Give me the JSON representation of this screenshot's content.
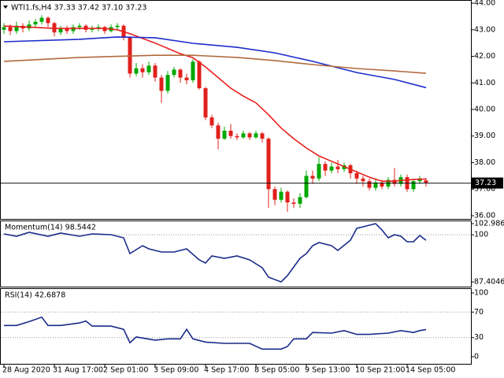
{
  "chart_data": [
    {
      "type": "candlestick",
      "title": "WTI1.fs,H4  37.33 37.42 37.10 37.23",
      "open": [
        43.0,
        43.1,
        42.95,
        43.15,
        43.05,
        43.2,
        43.3,
        43.45,
        43.25,
        42.9,
        43.05,
        42.95,
        43.1,
        43.15,
        43.0,
        43.05,
        43.1,
        42.95,
        43.1,
        43.15,
        42.7,
        41.35,
        41.55,
        41.4,
        41.65,
        41.2,
        40.7,
        41.3,
        41.5,
        41.2,
        41.1,
        41.8,
        40.8,
        39.7,
        39.4,
        38.9,
        39.2,
        39.0,
        38.95,
        39.1,
        38.95,
        39.1,
        38.9,
        37.0,
        36.6,
        36.9,
        36.5,
        36.45,
        36.7,
        37.5,
        37.4,
        37.95,
        37.7,
        37.85,
        37.75,
        37.9,
        37.6,
        37.4,
        37.3,
        37.05,
        37.25,
        37.1,
        37.35,
        37.2,
        37.45,
        37.0,
        37.3,
        37.33
      ],
      "high": [
        43.25,
        43.2,
        43.3,
        43.25,
        43.35,
        43.4,
        43.55,
        43.5,
        43.3,
        43.15,
        43.15,
        43.2,
        43.25,
        43.2,
        43.15,
        43.2,
        43.15,
        43.2,
        43.25,
        43.2,
        42.75,
        41.75,
        41.7,
        41.8,
        41.75,
        41.3,
        41.45,
        41.6,
        41.55,
        41.35,
        41.9,
        41.85,
        40.85,
        39.8,
        39.5,
        39.35,
        39.45,
        39.1,
        39.2,
        39.15,
        39.2,
        39.15,
        38.95,
        37.1,
        37.05,
        36.95,
        36.65,
        36.85,
        37.7,
        37.7,
        38.2,
        38.05,
        38.0,
        38.1,
        38.0,
        37.95,
        37.7,
        37.5,
        37.4,
        37.4,
        37.35,
        37.45,
        37.8,
        37.55,
        37.55,
        37.4,
        37.5,
        37.42
      ],
      "low": [
        42.85,
        42.8,
        42.85,
        42.9,
        42.95,
        43.1,
        43.2,
        43.1,
        42.75,
        42.8,
        42.85,
        42.85,
        43.0,
        42.9,
        42.9,
        42.95,
        42.85,
        42.9,
        43.0,
        42.6,
        41.2,
        41.25,
        41.2,
        41.3,
        41.05,
        40.25,
        40.6,
        41.2,
        41.0,
        40.95,
        41.0,
        40.75,
        39.6,
        39.3,
        38.5,
        38.85,
        38.9,
        38.85,
        38.9,
        38.85,
        38.9,
        38.75,
        36.3,
        36.4,
        36.5,
        36.15,
        36.3,
        36.3,
        36.65,
        37.2,
        37.3,
        37.5,
        37.6,
        37.6,
        37.65,
        37.4,
        37.2,
        37.1,
        36.95,
        36.95,
        37.0,
        37.0,
        37.1,
        37.1,
        36.9,
        36.9,
        37.2,
        37.1
      ],
      "close": [
        43.1,
        42.95,
        43.15,
        43.05,
        43.2,
        43.3,
        43.45,
        43.25,
        42.9,
        43.05,
        42.95,
        43.1,
        43.15,
        43.0,
        43.05,
        43.1,
        42.95,
        43.1,
        43.15,
        42.7,
        41.35,
        41.55,
        41.4,
        41.65,
        41.2,
        40.7,
        41.3,
        41.5,
        41.2,
        41.1,
        41.8,
        40.8,
        39.7,
        39.4,
        38.9,
        39.2,
        39.0,
        38.95,
        39.1,
        38.95,
        39.1,
        38.9,
        37.0,
        36.6,
        36.9,
        36.5,
        36.45,
        36.7,
        37.5,
        37.4,
        37.95,
        37.7,
        37.85,
        37.75,
        37.9,
        37.6,
        37.4,
        37.3,
        37.05,
        37.25,
        37.1,
        37.35,
        37.2,
        37.45,
        37.0,
        37.3,
        37.4,
        37.23
      ],
      "up_color": "#00a800",
      "down_color": "#e0201c",
      "series": [
        {
          "color": "#e8201c",
          "x": [
            0,
            4,
            8,
            12,
            16,
            18,
            20,
            24,
            28,
            30,
            32,
            34,
            36,
            38,
            40,
            42,
            44,
            46,
            48,
            50,
            52,
            54,
            56,
            58,
            60,
            62,
            64,
            66,
            67
          ],
          "values": [
            43.14,
            43.1,
            43.05,
            43.05,
            43.05,
            43.0,
            42.85,
            42.5,
            42.1,
            41.95,
            41.6,
            41.2,
            40.8,
            40.5,
            40.25,
            39.8,
            39.3,
            38.9,
            38.55,
            38.25,
            38.05,
            37.85,
            37.65,
            37.45,
            37.3,
            37.3,
            37.35,
            37.38,
            37.38
          ]
        },
        {
          "color": "#1c2ccc",
          "x": [
            0,
            12,
            18,
            24,
            30,
            37,
            43,
            49,
            56,
            62,
            67
          ],
          "values": [
            42.55,
            42.64,
            42.73,
            42.7,
            42.49,
            42.34,
            42.13,
            41.81,
            41.39,
            41.13,
            40.82
          ]
        },
        {
          "color": "#b06a3c",
          "x": [
            0,
            12,
            24,
            30,
            37,
            43,
            49,
            56,
            62,
            67
          ],
          "values": [
            41.81,
            41.96,
            42.04,
            42.04,
            41.96,
            41.84,
            41.69,
            41.54,
            41.45,
            41.36
          ]
        }
      ],
      "xlim": [
        -0.625,
        74.125
      ],
      "ylim": [
        35.88,
        44.12
      ],
      "yticks": [
        {
          "value": 44,
          "label": "44.00"
        },
        {
          "value": 43,
          "label": "43.00"
        },
        {
          "value": 42,
          "label": "42.00"
        },
        {
          "value": 41,
          "label": "41.00"
        },
        {
          "value": 40,
          "label": "40.00"
        },
        {
          "value": 39,
          "label": "39.00"
        },
        {
          "value": 38,
          "label": "38.00"
        },
        {
          "value": 37,
          "label": "37.00"
        },
        {
          "value": 36,
          "label": "36.00"
        }
      ],
      "grid": false
    },
    {
      "type": "line",
      "title": "Momentum(14) 98.5442",
      "color": "#1a2a8a",
      "x": [
        0,
        2,
        4,
        7,
        9,
        12,
        14,
        17,
        19,
        20,
        22,
        23,
        25,
        27,
        29,
        31,
        32,
        33,
        35,
        37,
        39,
        41,
        42,
        44,
        45,
        47,
        48,
        49,
        50,
        52,
        53,
        55,
        56,
        57,
        59,
        60,
        61,
        62,
        63,
        64,
        65,
        66,
        67
      ],
      "values": [
        100.25,
        99.62,
        100.67,
        99.62,
        100.46,
        99.62,
        100.25,
        100.04,
        99.2,
        94.98,
        97.09,
        96.25,
        95.4,
        95.4,
        96.25,
        93.3,
        92.46,
        94.35,
        93.72,
        94.35,
        93.3,
        91.19,
        88.67,
        87.4046,
        89.09,
        93.72,
        94.98,
        97.09,
        97.93,
        97.09,
        95.82,
        98.56,
        101.72,
        102.14,
        102.9866,
        101.3,
        99.2,
        100.04,
        99.62,
        98.14,
        98.14,
        99.83,
        98.5442
      ],
      "xlim": [
        -0.625,
        74.125
      ],
      "ylim": [
        87.4046,
        102.9866
      ],
      "yticks": [
        102.9866,
        100,
        87.4046
      ],
      "grid": true
    },
    {
      "type": "line",
      "title": "RSI(14) 42.6878",
      "color": "#1a2a8a",
      "x": [
        0,
        2,
        4,
        6,
        7,
        9,
        12,
        13,
        14,
        17,
        19,
        20,
        21,
        24,
        26,
        28,
        29,
        30,
        32,
        35,
        39,
        41,
        44,
        45,
        46,
        48,
        49,
        52,
        54,
        56,
        58,
        61,
        63,
        65,
        66,
        67
      ],
      "values": [
        49,
        49,
        55,
        62,
        49,
        49,
        53,
        56,
        48,
        48,
        43,
        22,
        31,
        26,
        28,
        28,
        43,
        28,
        23,
        21,
        21,
        12,
        12,
        16,
        28,
        28,
        38,
        37,
        41,
        35,
        35,
        37,
        41,
        38,
        41,
        42.6878
      ],
      "xlim": [
        -0.625,
        74.125
      ],
      "ylim": [
        0,
        100
      ],
      "yticks": [
        100,
        70,
        30,
        0
      ],
      "grid": true,
      "xticks": [
        {
          "value": 0,
          "label": "28 Aug 2020"
        },
        {
          "value": 8,
          "label": "31 Aug 17:00"
        },
        {
          "value": 16,
          "label": "2 Sep 01:00"
        },
        {
          "value": 24,
          "label": "3 Sep 09:00"
        },
        {
          "value": 32,
          "label": "4 Sep 17:00"
        },
        {
          "value": 40,
          "label": "8 Sep 05:00"
        },
        {
          "value": 48,
          "label": "9 Sep 13:00"
        },
        {
          "value": 56,
          "label": "10 Sep 21:00"
        },
        {
          "value": 64,
          "label": "14 Sep 05:00"
        }
      ]
    }
  ]
}
